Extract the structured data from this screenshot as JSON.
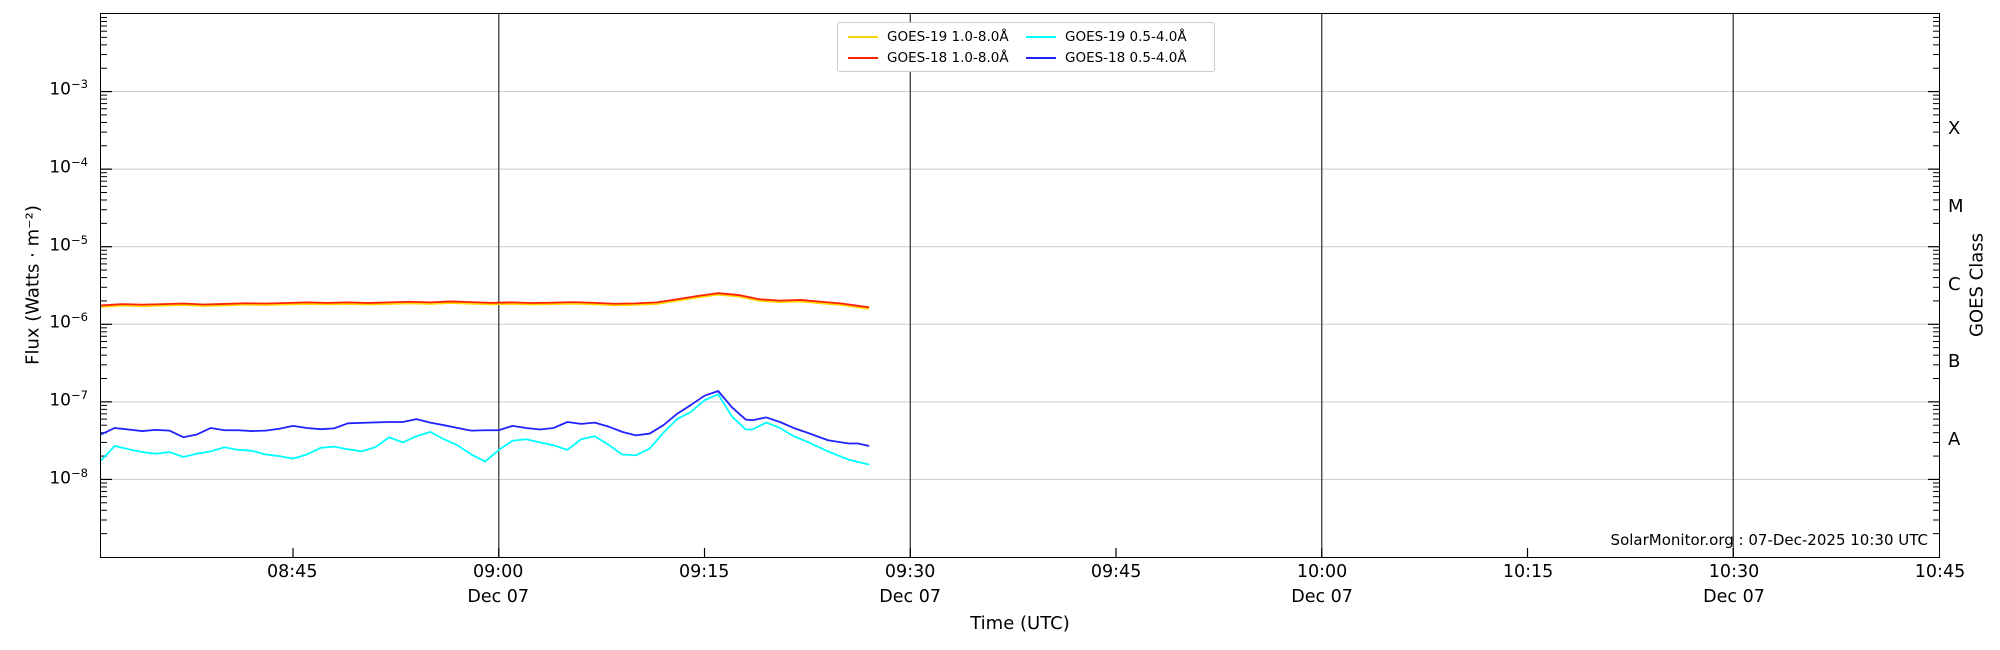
{
  "credit": "SolarMonitor.org : 07-Dec-2025 10:30 UTC",
  "colors": {
    "grid": "#c9c9c9",
    "date_divider": "#3c3c3c",
    "axis": "#000000"
  },
  "chart_data": {
    "type": "line",
    "title": "",
    "xlabel": "Time (UTC)",
    "ylabel": "Flux (Watts · m⁻²)",
    "y2label": "GOES Class",
    "x_axis": {
      "unit": "minutes after 08:00 UTC",
      "min": 31,
      "max": 165,
      "ticks": [
        {
          "m": 45,
          "label": "08:45"
        },
        {
          "m": 60,
          "label": "09:00",
          "date": "Dec 07"
        },
        {
          "m": 75,
          "label": "09:15"
        },
        {
          "m": 90,
          "label": "09:30",
          "date": "Dec 07"
        },
        {
          "m": 105,
          "label": "09:45"
        },
        {
          "m": 120,
          "label": "10:00",
          "date": "Dec 07"
        },
        {
          "m": 135,
          "label": "10:15"
        },
        {
          "m": 150,
          "label": "10:30",
          "date": "Dec 07"
        },
        {
          "m": 165,
          "label": "10:45"
        }
      ]
    },
    "y_axis": {
      "scale": "log",
      "min_exp": -9,
      "max_exp": -2,
      "labeled_exponents": [
        -3,
        -4,
        -5,
        -6,
        -7,
        -8
      ],
      "grid": true
    },
    "goes_classes": [
      {
        "label": "A",
        "range": [
          1e-08,
          1e-07
        ]
      },
      {
        "label": "B",
        "range": [
          1e-07,
          1e-06
        ]
      },
      {
        "label": "C",
        "range": [
          1e-06,
          1e-05
        ]
      },
      {
        "label": "M",
        "range": [
          1e-05,
          0.0001
        ]
      },
      {
        "label": "X",
        "range": [
          0.0001,
          0.001
        ]
      }
    ],
    "legend_position": "top-center",
    "series": [
      {
        "name": "GOES-19 1.0-8.0Å",
        "color": "#ffd700",
        "points": [
          [
            31,
            1.67e-06
          ],
          [
            32.5,
            1.74e-06
          ],
          [
            34,
            1.71e-06
          ],
          [
            35.5,
            1.74e-06
          ],
          [
            37,
            1.77e-06
          ],
          [
            38.5,
            1.72e-06
          ],
          [
            40,
            1.75e-06
          ],
          [
            41.5,
            1.79e-06
          ],
          [
            43,
            1.77e-06
          ],
          [
            44.5,
            1.8e-06
          ],
          [
            46,
            1.83e-06
          ],
          [
            47.5,
            1.81e-06
          ],
          [
            49,
            1.83e-06
          ],
          [
            50.5,
            1.8e-06
          ],
          [
            52,
            1.83e-06
          ],
          [
            53.5,
            1.86e-06
          ],
          [
            55,
            1.83e-06
          ],
          [
            56.5,
            1.88e-06
          ],
          [
            58,
            1.84e-06
          ],
          [
            59.5,
            1.81e-06
          ],
          [
            61,
            1.83e-06
          ],
          [
            62.5,
            1.8e-06
          ],
          [
            64,
            1.82e-06
          ],
          [
            65.5,
            1.84e-06
          ],
          [
            67,
            1.81e-06
          ],
          [
            68.5,
            1.76e-06
          ],
          [
            70,
            1.78e-06
          ],
          [
            71.5,
            1.83e-06
          ],
          [
            73,
            2.01e-06
          ],
          [
            74.5,
            2.22e-06
          ],
          [
            76,
            2.41e-06
          ],
          [
            77.5,
            2.27e-06
          ],
          [
            79,
            2.01e-06
          ],
          [
            80.5,
            1.93e-06
          ],
          [
            82,
            1.97e-06
          ],
          [
            83.5,
            1.86e-06
          ],
          [
            85,
            1.77e-06
          ],
          [
            86,
            1.67e-06
          ],
          [
            87,
            1.58e-06
          ]
        ]
      },
      {
        "name": "GOES-18 1.0-8.0Å",
        "color": "#ff2200",
        "points": [
          [
            31,
            1.75e-06
          ],
          [
            32.5,
            1.82e-06
          ],
          [
            34,
            1.79e-06
          ],
          [
            35.5,
            1.82e-06
          ],
          [
            37,
            1.85e-06
          ],
          [
            38.5,
            1.8e-06
          ],
          [
            40,
            1.83e-06
          ],
          [
            41.5,
            1.87e-06
          ],
          [
            43,
            1.85e-06
          ],
          [
            44.5,
            1.88e-06
          ],
          [
            46,
            1.92e-06
          ],
          [
            47.5,
            1.89e-06
          ],
          [
            49,
            1.92e-06
          ],
          [
            50.5,
            1.88e-06
          ],
          [
            52,
            1.92e-06
          ],
          [
            53.5,
            1.95e-06
          ],
          [
            55,
            1.92e-06
          ],
          [
            56.5,
            1.97e-06
          ],
          [
            58,
            1.93e-06
          ],
          [
            59.5,
            1.89e-06
          ],
          [
            61,
            1.92e-06
          ],
          [
            62.5,
            1.88e-06
          ],
          [
            64,
            1.9e-06
          ],
          [
            65.5,
            1.93e-06
          ],
          [
            67,
            1.89e-06
          ],
          [
            68.5,
            1.84e-06
          ],
          [
            70,
            1.86e-06
          ],
          [
            71.5,
            1.92e-06
          ],
          [
            73,
            2.1e-06
          ],
          [
            74.5,
            2.32e-06
          ],
          [
            76,
            2.52e-06
          ],
          [
            77.5,
            2.38e-06
          ],
          [
            79,
            2.1e-06
          ],
          [
            80.5,
            2.02e-06
          ],
          [
            82,
            2.06e-06
          ],
          [
            83.5,
            1.95e-06
          ],
          [
            85,
            1.85e-06
          ],
          [
            86,
            1.75e-06
          ],
          [
            87,
            1.65e-06
          ]
        ]
      },
      {
        "name": "GOES-19 0.5-4.0Å",
        "color": "#00ffff",
        "points": [
          [
            31,
            1.75e-08
          ],
          [
            32,
            2.7e-08
          ],
          [
            33,
            2.45e-08
          ],
          [
            34,
            2.25e-08
          ],
          [
            35,
            2.15e-08
          ],
          [
            36,
            2.25e-08
          ],
          [
            37,
            1.95e-08
          ],
          [
            38,
            2.15e-08
          ],
          [
            39,
            2.3e-08
          ],
          [
            40,
            2.6e-08
          ],
          [
            41,
            2.4e-08
          ],
          [
            42,
            2.35e-08
          ],
          [
            43,
            2.1e-08
          ],
          [
            44,
            2e-08
          ],
          [
            45,
            1.85e-08
          ],
          [
            46,
            2.1e-08
          ],
          [
            47,
            2.55e-08
          ],
          [
            48,
            2.65e-08
          ],
          [
            49,
            2.45e-08
          ],
          [
            50,
            2.3e-08
          ],
          [
            51,
            2.6e-08
          ],
          [
            52,
            3.5e-08
          ],
          [
            53,
            3e-08
          ],
          [
            54,
            3.6e-08
          ],
          [
            55,
            4.1e-08
          ],
          [
            56,
            3.3e-08
          ],
          [
            57,
            2.75e-08
          ],
          [
            58,
            2.1e-08
          ],
          [
            59,
            1.7e-08
          ],
          [
            60,
            2.4e-08
          ],
          [
            61,
            3.15e-08
          ],
          [
            62,
            3.3e-08
          ],
          [
            63,
            3e-08
          ],
          [
            64,
            2.75e-08
          ],
          [
            65,
            2.4e-08
          ],
          [
            66,
            3.3e-08
          ],
          [
            67,
            3.6e-08
          ],
          [
            68,
            2.8e-08
          ],
          [
            69,
            2.1e-08
          ],
          [
            70,
            2.05e-08
          ],
          [
            71,
            2.5e-08
          ],
          [
            72,
            4e-08
          ],
          [
            73,
            6e-08
          ],
          [
            74,
            7.4e-08
          ],
          [
            75,
            1.05e-07
          ],
          [
            76,
            1.25e-07
          ],
          [
            77,
            6.5e-08
          ],
          [
            78,
            4.4e-08
          ],
          [
            78.5,
            4.4e-08
          ],
          [
            79.5,
            5.4e-08
          ],
          [
            80.5,
            4.6e-08
          ],
          [
            81.5,
            3.6e-08
          ],
          [
            82.5,
            3.05e-08
          ],
          [
            84,
            2.3e-08
          ],
          [
            85.5,
            1.8e-08
          ],
          [
            87,
            1.55e-08
          ]
        ]
      },
      {
        "name": "GOES-18 0.5-4.0Å",
        "color": "#2222ff",
        "points": [
          [
            31,
            3.8e-08
          ],
          [
            32,
            4.6e-08
          ],
          [
            33,
            4.4e-08
          ],
          [
            34,
            4.2e-08
          ],
          [
            35,
            4.35e-08
          ],
          [
            36,
            4.25e-08
          ],
          [
            37,
            3.5e-08
          ],
          [
            38,
            3.8e-08
          ],
          [
            39,
            4.6e-08
          ],
          [
            40,
            4.3e-08
          ],
          [
            41,
            4.3e-08
          ],
          [
            42,
            4.2e-08
          ],
          [
            43,
            4.25e-08
          ],
          [
            44,
            4.5e-08
          ],
          [
            45,
            4.9e-08
          ],
          [
            46,
            4.6e-08
          ],
          [
            47,
            4.45e-08
          ],
          [
            48,
            4.55e-08
          ],
          [
            49,
            5.3e-08
          ],
          [
            50.5,
            5.4e-08
          ],
          [
            52,
            5.5e-08
          ],
          [
            53,
            5.5e-08
          ],
          [
            54,
            6e-08
          ],
          [
            55,
            5.4e-08
          ],
          [
            56,
            5e-08
          ],
          [
            57,
            4.6e-08
          ],
          [
            58,
            4.25e-08
          ],
          [
            59,
            4.3e-08
          ],
          [
            60,
            4.3e-08
          ],
          [
            61,
            4.9e-08
          ],
          [
            62,
            4.6e-08
          ],
          [
            63,
            4.4e-08
          ],
          [
            64,
            4.6e-08
          ],
          [
            65,
            5.5e-08
          ],
          [
            66,
            5.2e-08
          ],
          [
            67,
            5.4e-08
          ],
          [
            68,
            4.8e-08
          ],
          [
            69,
            4.1e-08
          ],
          [
            70,
            3.7e-08
          ],
          [
            71,
            3.9e-08
          ],
          [
            72,
            5e-08
          ],
          [
            73,
            7e-08
          ],
          [
            74,
            9.1e-08
          ],
          [
            75,
            1.2e-07
          ],
          [
            76,
            1.38e-07
          ],
          [
            77,
            8.5e-08
          ],
          [
            78,
            5.9e-08
          ],
          [
            78.5,
            5.8e-08
          ],
          [
            79.5,
            6.3e-08
          ],
          [
            80.5,
            5.5e-08
          ],
          [
            81.5,
            4.6e-08
          ],
          [
            82.5,
            4e-08
          ],
          [
            84,
            3.2e-08
          ],
          [
            85.5,
            2.9e-08
          ],
          [
            86.2,
            2.9e-08
          ],
          [
            87,
            2.7e-08
          ]
        ]
      }
    ]
  }
}
